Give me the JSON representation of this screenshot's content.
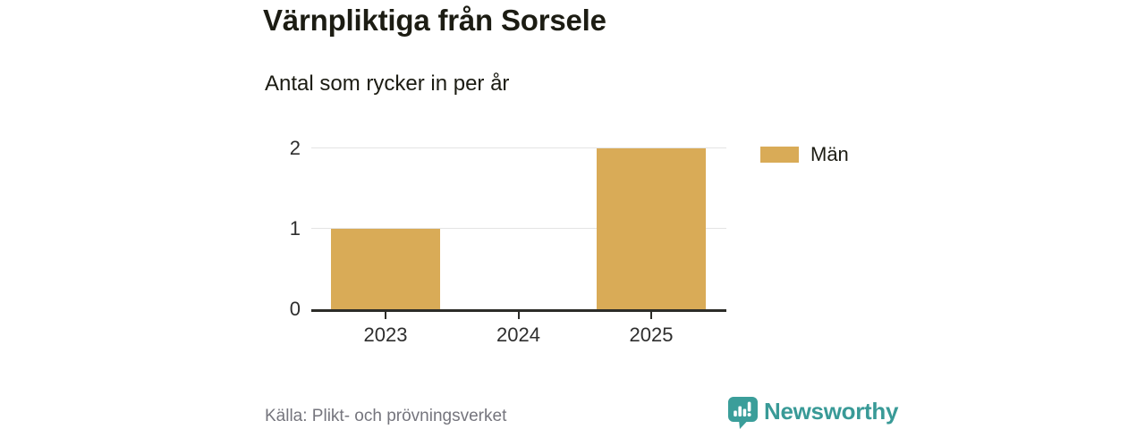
{
  "chart": {
    "title": "Värnpliktiga från Sorsele",
    "subtitle": "Antal som rycker in per år"
  },
  "chart_data": {
    "type": "bar",
    "title": "Värnpliktiga från Sorsele",
    "subtitle": "Antal som rycker in per år",
    "categories": [
      "2023",
      "2024",
      "2025"
    ],
    "series": [
      {
        "name": "Män",
        "color": "#d9ab57",
        "values": [
          1,
          0,
          2
        ]
      }
    ],
    "xlabel": "",
    "ylabel": "",
    "ylim": [
      0,
      2
    ],
    "yticks": [
      0,
      1,
      2
    ],
    "grid": true,
    "legend_position": "right"
  },
  "legend": {
    "label": "Män",
    "color": "#d9ab57"
  },
  "footer": {
    "source": "Källa: Plikt- och prövningsverket",
    "brand": "Newsworthy"
  },
  "colors": {
    "bar": "#d9ab57",
    "teal": "#399a97",
    "grid": "#e4e4e4",
    "axis": "#2c2c28",
    "text": "#1c1c13",
    "muted": "#75757d"
  }
}
